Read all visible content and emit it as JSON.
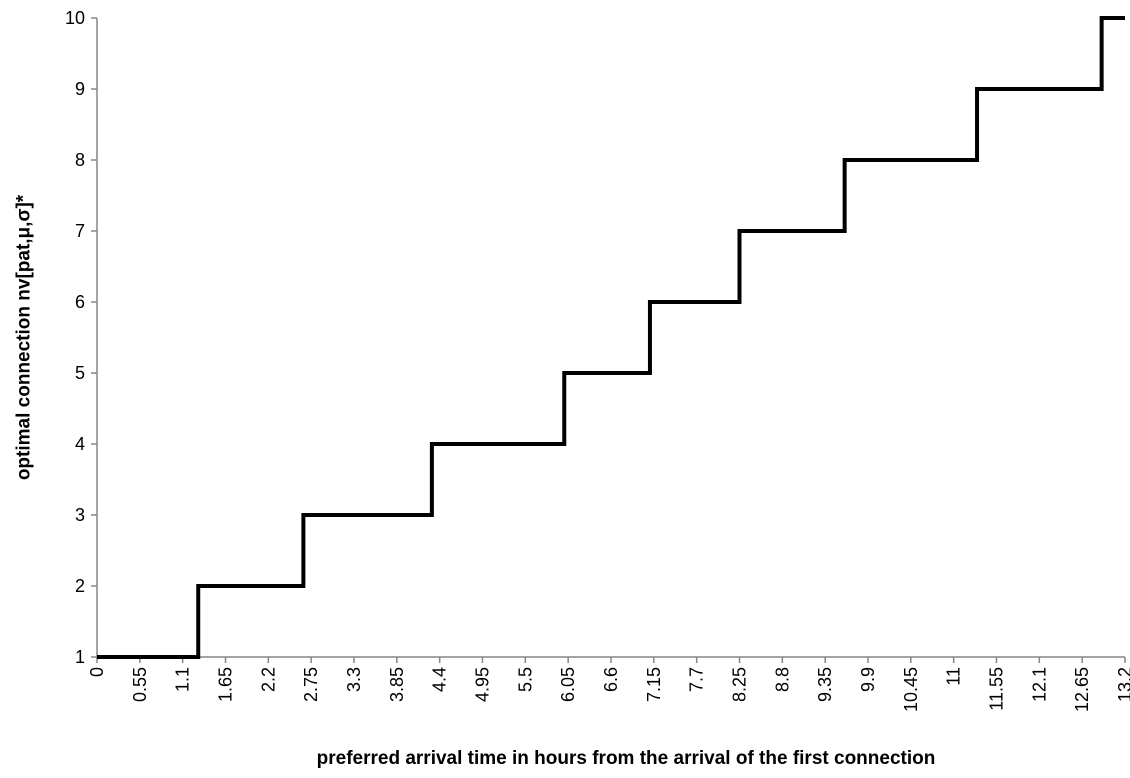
{
  "chart_data": {
    "type": "line",
    "title": "",
    "xlabel": "preferred arrival time in hours from the arrival of the first connection",
    "ylabel": "optimal connection nv[pat,μ,σ]*",
    "xlim": [
      0,
      13.2
    ],
    "ylim": [
      1,
      10
    ],
    "grid": false,
    "legend": "none",
    "line_color": "#000000",
    "x_ticks": [
      "0",
      "0.55",
      "1.1",
      "1.65",
      "2.2",
      "2.75",
      "3.3",
      "3.85",
      "4.4",
      "4.95",
      "5.5",
      "6.05",
      "6.6",
      "7.15",
      "7.7",
      "8.25",
      "8.8",
      "9.35",
      "9.9",
      "10.45",
      "11",
      "11.55",
      "12.1",
      "12.65",
      "13.2"
    ],
    "y_ticks": [
      "1",
      "2",
      "3",
      "4",
      "5",
      "6",
      "7",
      "8",
      "9",
      "10"
    ],
    "series": [
      {
        "x": [
          0,
          1.3,
          1.3,
          2.65,
          2.65,
          4.3,
          4.3,
          6.0,
          6.0,
          7.1,
          7.1,
          8.25,
          8.25,
          9.6,
          9.6,
          11.3,
          11.3,
          12.9,
          12.9,
          13.2
        ],
        "y": [
          1,
          1,
          2,
          2,
          3,
          3,
          4,
          4,
          5,
          5,
          6,
          6,
          7,
          7,
          8,
          8,
          9,
          9,
          10,
          10
        ]
      }
    ]
  }
}
